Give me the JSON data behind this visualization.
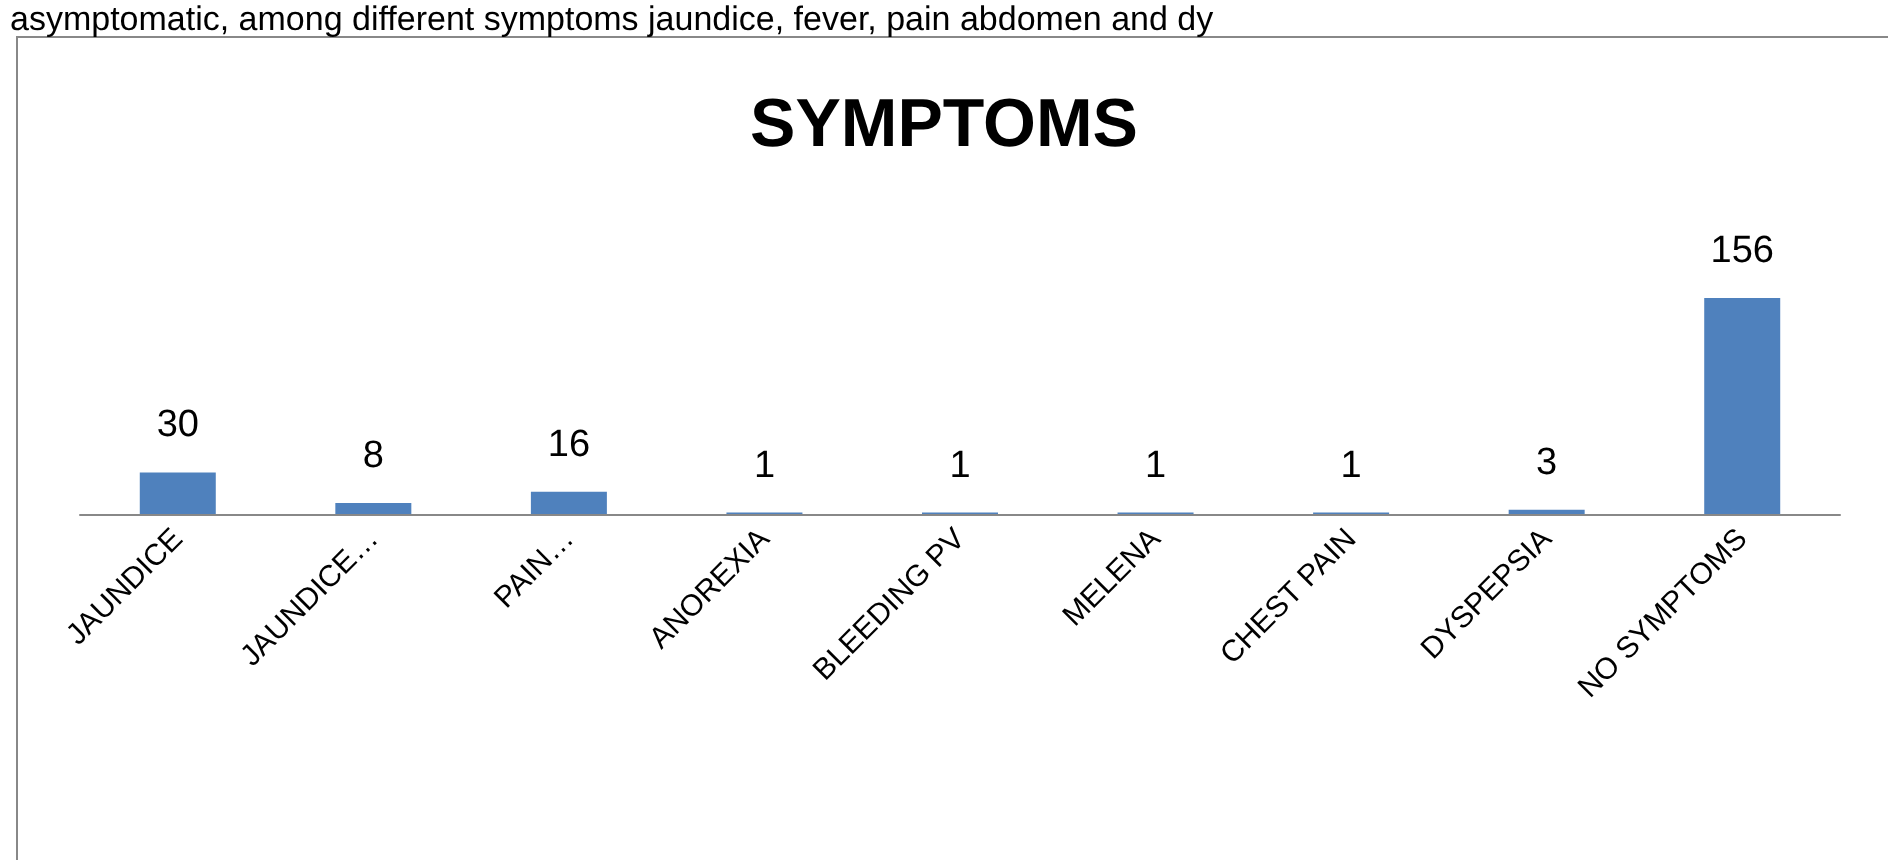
{
  "chart_data": {
    "type": "bar",
    "title": "SYMPTOMS",
    "annotations": [
      "asymptomatic, among different symptoms jaundice, fever, pain abdomen and dy"
    ],
    "categories": [
      "JAUNDICE",
      "JAUNDICE…",
      "PAIN…",
      "ANOREXIA",
      "BLEEDING PV",
      "MELENA",
      "CHEST PAIN",
      "DYSPEPSIA",
      "NO SYMPTOMS"
    ],
    "values": [
      30,
      8,
      16,
      1,
      1,
      1,
      1,
      3,
      156
    ],
    "color": "#4f81bd",
    "data_labels": true
  }
}
